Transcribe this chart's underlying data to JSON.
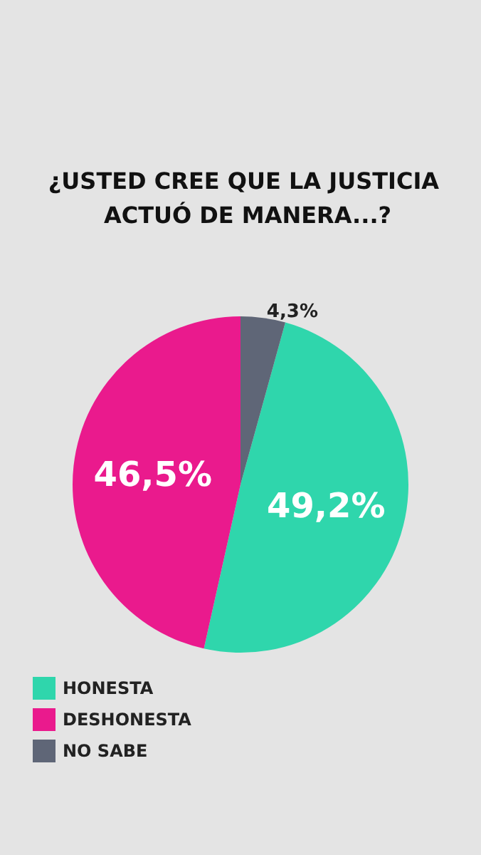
{
  "chart_data": {
    "type": "pie",
    "title": "¿USTED CREE QUE LA JUSTICIA ACTUÓ DE MANERA...?",
    "categories": [
      "HONESTA",
      "DESHONESTA",
      "NO SABE"
    ],
    "values": [
      49.2,
      46.5,
      4.3
    ],
    "colors": [
      "#2fd6ac",
      "#ea1a8d",
      "#5f6677"
    ],
    "value_labels": [
      "49,2%",
      "46,5%",
      "4,3%"
    ],
    "legend": "bottom"
  }
}
